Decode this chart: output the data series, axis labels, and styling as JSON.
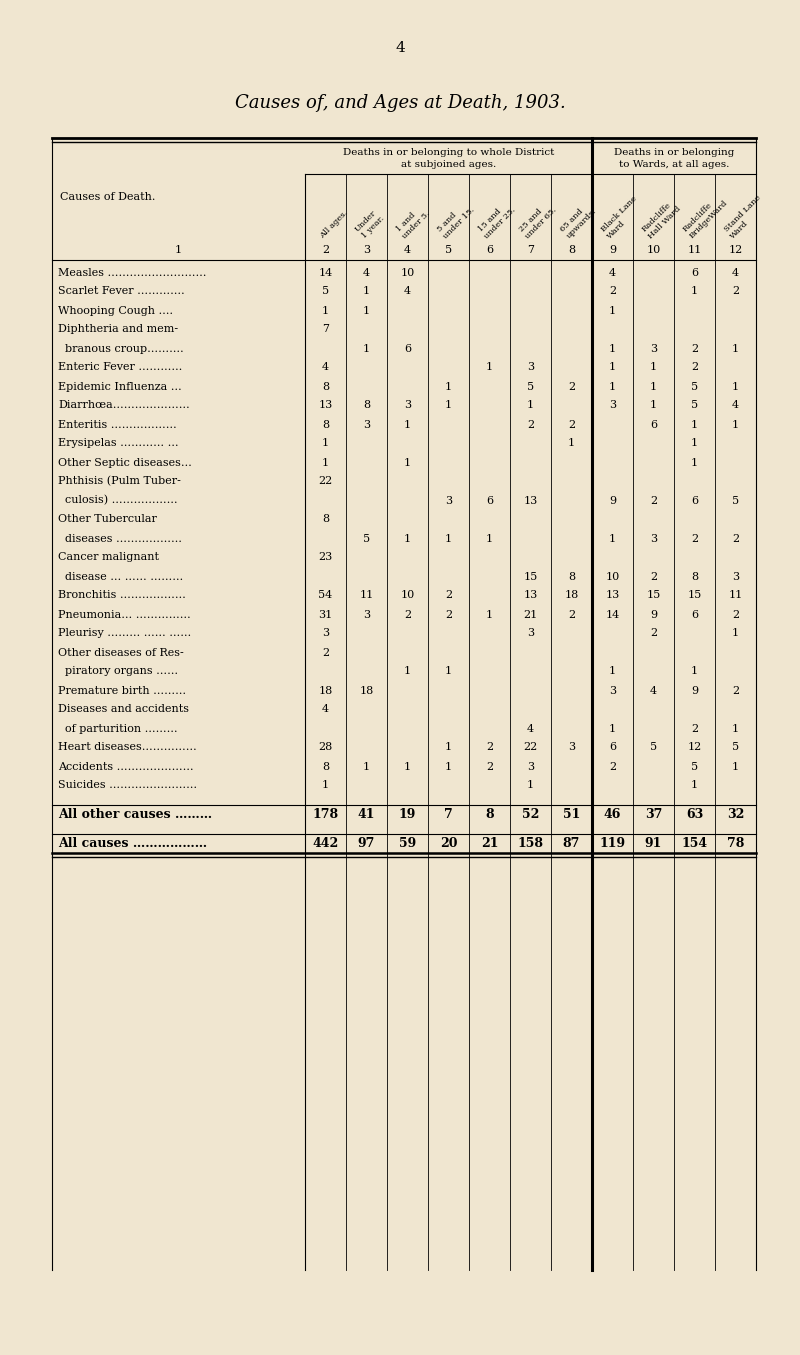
{
  "title": "Causes of, and Ages at Death, 1903.",
  "page_number": "4",
  "background_color": "#f0e6d0",
  "header1": "Deaths in or belonging to whole District",
  "header1b": "at subjoined ages.",
  "header2": "Deaths in or belonging",
  "header2b": "to Wards, at all ages.",
  "col_headers": [
    "All ages.",
    "Under\n1 year.",
    "1 and\nunder 5.",
    "5 and\nunder 15.",
    "15 and\nunder 25.",
    "25 and\nunder 65.",
    "65 and\nupwards.",
    "Black Lane\nWard",
    "Radcliffe\nHall Ward",
    "Radcliffe\nBridgeWard",
    "Stand Lane\nWard"
  ],
  "col_nums": [
    "2",
    "3",
    "4",
    "5",
    "6",
    "7",
    "8",
    "9",
    "10",
    "11",
    "12"
  ],
  "causes": [
    "Measles ………………………",
    "Scarlet Fever ………….",
    "Whooping Cough ….",
    "Diphtheria and mem-",
    "  branous croup……….",
    "Enteric Fever …………",
    "Epidemic Influenza …",
    "Diarrhœa…………………",
    "Enteritis ………………",
    "Erysipelas ………… …",
    "Other Septic diseases…",
    "Phthisis (Pulm Tuber-",
    "  culosis) ………………",
    "Other Tubercular",
    "  diseases ………………",
    "Cancer malignant",
    "  disease … …… ………",
    "Bronchitis ………………",
    "Pneumonia… ……………",
    "Pleurisy ……… …… ……",
    "Other diseases of Res-",
    "  piratory organs ……",
    "Premature birth ………",
    "Diseases and accidents",
    "  of parturition ………",
    "Heart diseases……………",
    "Accidents …………………",
    "Suicides ……………………",
    "",
    "All other causes ………",
    "",
    "All causes ………………"
  ],
  "data_rows": {
    "0": [
      "14",
      "4",
      "10",
      "",
      "",
      "",
      "",
      "4",
      "",
      "6",
      "4"
    ],
    "1": [
      "5",
      "1",
      "4",
      "",
      "",
      "",
      "",
      "2",
      "",
      "1",
      "2"
    ],
    "2": [
      "1",
      "1",
      "",
      "",
      "",
      "",
      "",
      "1",
      "",
      "",
      ""
    ],
    "3": [
      "7",
      "",
      "",
      "",
      "",
      "",
      "",
      "",
      "",
      "",
      ""
    ],
    "4": [
      "",
      "1",
      "6",
      "",
      "",
      "",
      "",
      "1",
      "3",
      "2",
      "1"
    ],
    "5": [
      "4",
      "",
      "",
      "",
      "1",
      "3",
      "",
      "1",
      "1",
      "2",
      ""
    ],
    "6": [
      "8",
      "",
      "",
      "1",
      "",
      "5",
      "2",
      "1",
      "1",
      "5",
      "1"
    ],
    "7": [
      "13",
      "8",
      "3",
      "1",
      "",
      "1",
      "",
      "3",
      "1",
      "5",
      "4"
    ],
    "8": [
      "8",
      "3",
      "1",
      "",
      "",
      "2",
      "2",
      "",
      "6",
      "1",
      "1"
    ],
    "9": [
      "1",
      "",
      "",
      "",
      "",
      "",
      "1",
      "",
      "",
      "1",
      ""
    ],
    "10": [
      "1",
      "",
      "1",
      "",
      "",
      "",
      "",
      "",
      "",
      "1",
      ""
    ],
    "11": [
      "22",
      "",
      "",
      "",
      "",
      "",
      "",
      "",
      "",
      "",
      ""
    ],
    "12": [
      "",
      "",
      "",
      "3",
      "6",
      "13",
      "",
      "9",
      "2",
      "6",
      "5"
    ],
    "13": [
      "8",
      "",
      "",
      "",
      "",
      "",
      "",
      "",
      "",
      "",
      ""
    ],
    "14": [
      "",
      "5",
      "1",
      "1",
      "1",
      "",
      "",
      "1",
      "3",
      "2",
      "2"
    ],
    "15": [
      "23",
      "",
      "",
      "",
      "",
      "",
      "",
      "",
      "",
      "",
      ""
    ],
    "16": [
      "",
      "",
      "",
      "",
      "",
      "15",
      "8",
      "10",
      "2",
      "8",
      "3"
    ],
    "17": [
      "54",
      "11",
      "10",
      "2",
      "",
      "13",
      "18",
      "13",
      "15",
      "15",
      "11"
    ],
    "18": [
      "31",
      "3",
      "2",
      "2",
      "1",
      "21",
      "2",
      "14",
      "9",
      "6",
      "2"
    ],
    "19": [
      "3",
      "",
      "",
      "",
      "",
      "3",
      "",
      "",
      "2",
      "",
      "1"
    ],
    "20": [
      "2",
      "",
      "",
      "",
      "",
      "",
      "",
      "",
      "",
      "",
      ""
    ],
    "21": [
      "",
      "",
      "1",
      "1",
      "",
      "",
      "",
      "1",
      "",
      "1",
      ""
    ],
    "22": [
      "18",
      "18",
      "",
      "",
      "",
      "",
      "",
      "3",
      "4",
      "9",
      "2"
    ],
    "23": [
      "4",
      "",
      "",
      "",
      "",
      "",
      "",
      "",
      "",
      "",
      ""
    ],
    "24": [
      "",
      "",
      "",
      "",
      "",
      "4",
      "",
      "1",
      "",
      "2",
      "1"
    ],
    "25": [
      "28",
      "",
      "",
      "1",
      "2",
      "22",
      "3",
      "6",
      "5",
      "12",
      "5"
    ],
    "26": [
      "8",
      "1",
      "1",
      "1",
      "2",
      "3",
      "",
      "2",
      "",
      "5",
      "1"
    ],
    "27": [
      "1",
      "",
      "",
      "",
      "",
      "1",
      "",
      "",
      "",
      "1",
      ""
    ],
    "28": [
      "",
      "",
      "",
      "",
      "",
      "",
      "",
      "",
      "",
      "",
      ""
    ],
    "29": [
      "178",
      "41",
      "19",
      "7",
      "8",
      "52",
      "51",
      "46",
      "37",
      "63",
      "32"
    ],
    "30": [
      "",
      "",
      "",
      "",
      "",
      "",
      "",
      "",
      "",
      "",
      ""
    ],
    "31": [
      "442",
      "97",
      "59",
      "20",
      "21",
      "158",
      "87",
      "119",
      "91",
      "154",
      "78"
    ]
  },
  "bold_rows": [
    29,
    31
  ],
  "separator_before": [
    29,
    31
  ],
  "spacer_rows": [
    28,
    30
  ]
}
